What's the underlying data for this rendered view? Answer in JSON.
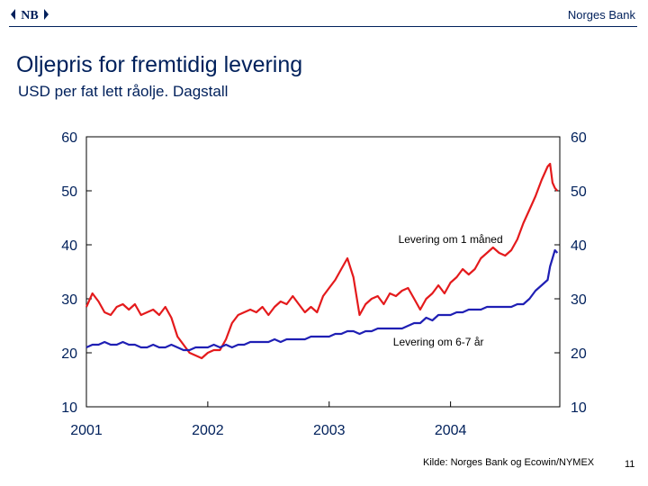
{
  "header": {
    "logo_text": "NB",
    "bank_name": "Norges Bank"
  },
  "slide": {
    "title": "Oljepris for fremtidig levering",
    "subtitle": "USD per fat lett råolje. Dagstall",
    "source": "Kilde: Norges Bank og Ecowin/NYMEX",
    "page_number": "11"
  },
  "chart_data": {
    "type": "line",
    "title": "",
    "xlabel": "",
    "ylabel": "",
    "ylim": [
      10,
      60
    ],
    "xlim": [
      2001.0,
      2004.9
    ],
    "y_ticks": [
      10,
      20,
      30,
      40,
      50,
      60
    ],
    "y_tick_labels_left": [
      "10",
      "20",
      "30",
      "40",
      "50",
      "60"
    ],
    "y_tick_labels_right": [
      "10",
      "20",
      "30",
      "40",
      "50",
      "60"
    ],
    "x_ticks": [
      2001,
      2002,
      2003,
      2004
    ],
    "x_tick_labels": [
      "2001",
      "2002",
      "2003",
      "2004"
    ],
    "grid": false,
    "legend": "none",
    "series": [
      {
        "name": "Levering om 1 måned",
        "color": "#e41a1c",
        "x": [
          2001.0,
          2001.05,
          2001.1,
          2001.15,
          2001.2,
          2001.25,
          2001.3,
          2001.35,
          2001.4,
          2001.45,
          2001.5,
          2001.55,
          2001.6,
          2001.65,
          2001.7,
          2001.75,
          2001.8,
          2001.85,
          2001.9,
          2001.95,
          2002.0,
          2002.05,
          2002.1,
          2002.15,
          2002.2,
          2002.25,
          2002.3,
          2002.35,
          2002.4,
          2002.45,
          2002.5,
          2002.55,
          2002.6,
          2002.65,
          2002.7,
          2002.75,
          2002.8,
          2002.85,
          2002.9,
          2002.95,
          2003.0,
          2003.05,
          2003.1,
          2003.15,
          2003.2,
          2003.25,
          2003.3,
          2003.35,
          2003.4,
          2003.45,
          2003.5,
          2003.55,
          2003.6,
          2003.65,
          2003.7,
          2003.75,
          2003.8,
          2003.85,
          2003.9,
          2003.95,
          2004.0,
          2004.05,
          2004.1,
          2004.15,
          2004.2,
          2004.25,
          2004.3,
          2004.35,
          2004.4,
          2004.45,
          2004.5,
          2004.55,
          2004.6,
          2004.65,
          2004.7,
          2004.75,
          2004.8,
          2004.82,
          2004.84,
          2004.86,
          2004.88
        ],
        "values": [
          28.5,
          31.0,
          29.5,
          27.5,
          27.0,
          28.5,
          29.0,
          28.0,
          29.0,
          27.0,
          27.5,
          28.0,
          27.0,
          28.5,
          26.5,
          23.0,
          21.5,
          20.0,
          19.5,
          19.0,
          20.0,
          20.5,
          20.5,
          22.5,
          25.5,
          27.0,
          27.5,
          28.0,
          27.5,
          28.5,
          27.0,
          28.5,
          29.5,
          29.0,
          30.5,
          29.0,
          27.5,
          28.5,
          27.5,
          30.5,
          32.0,
          33.5,
          35.5,
          37.5,
          34.0,
          27.0,
          29.0,
          30.0,
          30.5,
          29.0,
          31.0,
          30.5,
          31.5,
          32.0,
          30.0,
          28.0,
          30.0,
          31.0,
          32.5,
          31.0,
          33.0,
          34.0,
          35.5,
          34.5,
          35.5,
          37.5,
          38.5,
          39.5,
          38.5,
          38.0,
          39.0,
          41.0,
          44.0,
          46.5,
          49.0,
          52.0,
          54.5,
          55.0,
          51.5,
          50.5,
          50.0
        ]
      },
      {
        "name": "Levering om 6-7 år",
        "color": "#1f1fb4",
        "x": [
          2001.0,
          2001.05,
          2001.1,
          2001.15,
          2001.2,
          2001.25,
          2001.3,
          2001.35,
          2001.4,
          2001.45,
          2001.5,
          2001.55,
          2001.6,
          2001.65,
          2001.7,
          2001.75,
          2001.8,
          2001.85,
          2001.9,
          2001.95,
          2002.0,
          2002.05,
          2002.1,
          2002.15,
          2002.2,
          2002.25,
          2002.3,
          2002.35,
          2002.4,
          2002.45,
          2002.5,
          2002.55,
          2002.6,
          2002.65,
          2002.7,
          2002.75,
          2002.8,
          2002.85,
          2002.9,
          2002.95,
          2003.0,
          2003.05,
          2003.1,
          2003.15,
          2003.2,
          2003.25,
          2003.3,
          2003.35,
          2003.4,
          2003.45,
          2003.5,
          2003.55,
          2003.6,
          2003.65,
          2003.7,
          2003.75,
          2003.8,
          2003.85,
          2003.9,
          2003.95,
          2004.0,
          2004.05,
          2004.1,
          2004.15,
          2004.2,
          2004.25,
          2004.3,
          2004.35,
          2004.4,
          2004.45,
          2004.5,
          2004.55,
          2004.6,
          2004.65,
          2004.7,
          2004.75,
          2004.8,
          2004.82,
          2004.84,
          2004.86,
          2004.88
        ],
        "values": [
          21.0,
          21.5,
          21.5,
          22.0,
          21.5,
          21.5,
          22.0,
          21.5,
          21.5,
          21.0,
          21.0,
          21.5,
          21.0,
          21.0,
          21.5,
          21.0,
          20.5,
          20.5,
          21.0,
          21.0,
          21.0,
          21.5,
          21.0,
          21.5,
          21.0,
          21.5,
          21.5,
          22.0,
          22.0,
          22.0,
          22.0,
          22.5,
          22.0,
          22.5,
          22.5,
          22.5,
          22.5,
          23.0,
          23.0,
          23.0,
          23.0,
          23.5,
          23.5,
          24.0,
          24.0,
          23.5,
          24.0,
          24.0,
          24.5,
          24.5,
          24.5,
          24.5,
          24.5,
          25.0,
          25.5,
          25.5,
          26.5,
          26.0,
          27.0,
          27.0,
          27.0,
          27.5,
          27.5,
          28.0,
          28.0,
          28.0,
          28.5,
          28.5,
          28.5,
          28.5,
          28.5,
          29.0,
          29.0,
          30.0,
          31.5,
          32.5,
          33.5,
          36.0,
          37.5,
          39.0,
          38.5
        ]
      }
    ],
    "annotations": [
      {
        "text": "Levering om 1 måned",
        "x": 2004.0,
        "y": 40
      },
      {
        "text": "Levering om 6-7 år",
        "x": 2003.9,
        "y": 21
      }
    ]
  }
}
